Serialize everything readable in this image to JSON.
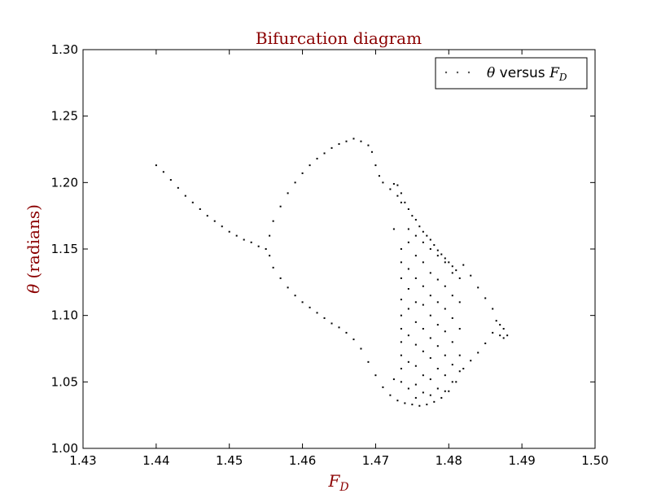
{
  "chart_data": {
    "type": "scatter",
    "title": "Bifurcation diagram",
    "xlabel": {
      "main": "F",
      "sub": "D"
    },
    "ylabel": {
      "symbol": "θ",
      "rest": " (radians)"
    },
    "xlim": [
      1.43,
      1.5
    ],
    "ylim": [
      1.0,
      1.3
    ],
    "xticks": [
      "1.43",
      "1.44",
      "1.45",
      "1.46",
      "1.47",
      "1.48",
      "1.49",
      "1.50"
    ],
    "yticks": [
      "1.00",
      "1.05",
      "1.10",
      "1.15",
      "1.20",
      "1.25",
      "1.30"
    ],
    "grid": false,
    "legend": {
      "position": "top-right",
      "symbol": "θ",
      "text": " versus ",
      "var": "F",
      "sub": "D"
    },
    "colors": {
      "title": "#8b0000",
      "marker": "#000000",
      "axes": "#000000"
    },
    "series": [
      {
        "points": [
          [
            1.44,
            1.213
          ],
          [
            1.441,
            1.208
          ],
          [
            1.442,
            1.202
          ],
          [
            1.443,
            1.196
          ],
          [
            1.444,
            1.19
          ],
          [
            1.445,
            1.185
          ],
          [
            1.446,
            1.18
          ],
          [
            1.447,
            1.175
          ],
          [
            1.448,
            1.171
          ],
          [
            1.449,
            1.167
          ],
          [
            1.45,
            1.163
          ],
          [
            1.451,
            1.16
          ],
          [
            1.452,
            1.157
          ],
          [
            1.453,
            1.155
          ],
          [
            1.454,
            1.152
          ],
          [
            1.455,
            1.15
          ],
          [
            1.4555,
            1.16
          ],
          [
            1.456,
            1.171
          ],
          [
            1.457,
            1.182
          ],
          [
            1.458,
            1.192
          ],
          [
            1.459,
            1.2
          ],
          [
            1.46,
            1.207
          ],
          [
            1.461,
            1.213
          ],
          [
            1.462,
            1.218
          ],
          [
            1.463,
            1.222
          ],
          [
            1.464,
            1.226
          ],
          [
            1.465,
            1.229
          ],
          [
            1.466,
            1.231
          ],
          [
            1.467,
            1.233
          ],
          [
            1.468,
            1.231
          ],
          [
            1.469,
            1.228
          ],
          [
            1.4695,
            1.223
          ],
          [
            1.47,
            1.213
          ],
          [
            1.4705,
            1.205
          ],
          [
            1.471,
            1.2
          ],
          [
            1.472,
            1.195
          ],
          [
            1.473,
            1.19
          ],
          [
            1.4735,
            1.185
          ],
          [
            1.4555,
            1.145
          ],
          [
            1.456,
            1.136
          ],
          [
            1.457,
            1.128
          ],
          [
            1.458,
            1.121
          ],
          [
            1.459,
            1.115
          ],
          [
            1.46,
            1.11
          ],
          [
            1.461,
            1.106
          ],
          [
            1.462,
            1.102
          ],
          [
            1.463,
            1.098
          ],
          [
            1.464,
            1.094
          ],
          [
            1.465,
            1.091
          ],
          [
            1.466,
            1.087
          ],
          [
            1.467,
            1.082
          ],
          [
            1.468,
            1.075
          ],
          [
            1.469,
            1.065
          ],
          [
            1.47,
            1.055
          ],
          [
            1.471,
            1.046
          ],
          [
            1.472,
            1.04
          ],
          [
            1.473,
            1.036
          ],
          [
            1.474,
            1.034
          ],
          [
            1.475,
            1.033
          ],
          [
            1.476,
            1.032
          ],
          [
            1.477,
            1.033
          ],
          [
            1.478,
            1.035
          ],
          [
            1.479,
            1.038
          ],
          [
            1.48,
            1.043
          ],
          [
            1.481,
            1.05
          ],
          [
            1.482,
            1.06
          ],
          [
            1.483,
            1.066
          ],
          [
            1.484,
            1.072
          ],
          [
            1.485,
            1.079
          ],
          [
            1.486,
            1.087
          ],
          [
            1.487,
            1.085
          ],
          [
            1.4875,
            1.083
          ],
          [
            1.482,
            1.138
          ],
          [
            1.483,
            1.13
          ],
          [
            1.484,
            1.121
          ],
          [
            1.485,
            1.113
          ],
          [
            1.486,
            1.105
          ],
          [
            1.4865,
            1.096
          ],
          [
            1.487,
            1.093
          ],
          [
            1.4875,
            1.09
          ],
          [
            1.488,
            1.085
          ],
          [
            1.4725,
            1.199
          ],
          [
            1.473,
            1.198
          ],
          [
            1.4735,
            1.192
          ],
          [
            1.474,
            1.185
          ],
          [
            1.4745,
            1.18
          ],
          [
            1.475,
            1.175
          ],
          [
            1.4755,
            1.172
          ],
          [
            1.476,
            1.167
          ],
          [
            1.4765,
            1.163
          ],
          [
            1.477,
            1.16
          ],
          [
            1.4775,
            1.157
          ],
          [
            1.478,
            1.153
          ],
          [
            1.4785,
            1.149
          ],
          [
            1.479,
            1.146
          ],
          [
            1.4795,
            1.143
          ],
          [
            1.48,
            1.14
          ],
          [
            1.4805,
            1.137
          ],
          [
            1.481,
            1.134
          ],
          [
            1.4735,
            1.15
          ],
          [
            1.4735,
            1.14
          ],
          [
            1.4735,
            1.128
          ],
          [
            1.4735,
            1.112
          ],
          [
            1.4735,
            1.1
          ],
          [
            1.4735,
            1.09
          ],
          [
            1.4735,
            1.08
          ],
          [
            1.4735,
            1.07
          ],
          [
            1.4735,
            1.06
          ],
          [
            1.4735,
            1.05
          ],
          [
            1.4745,
            1.165
          ],
          [
            1.4745,
            1.155
          ],
          [
            1.4745,
            1.135
          ],
          [
            1.4745,
            1.12
          ],
          [
            1.4745,
            1.105
          ],
          [
            1.4745,
            1.085
          ],
          [
            1.4745,
            1.065
          ],
          [
            1.4745,
            1.045
          ],
          [
            1.4755,
            1.16
          ],
          [
            1.4755,
            1.145
          ],
          [
            1.4755,
            1.128
          ],
          [
            1.4755,
            1.11
          ],
          [
            1.4755,
            1.095
          ],
          [
            1.4755,
            1.078
          ],
          [
            1.4755,
            1.062
          ],
          [
            1.4755,
            1.048
          ],
          [
            1.4755,
            1.038
          ],
          [
            1.4765,
            1.155
          ],
          [
            1.4765,
            1.14
          ],
          [
            1.4765,
            1.122
          ],
          [
            1.4765,
            1.108
          ],
          [
            1.4765,
            1.09
          ],
          [
            1.4765,
            1.073
          ],
          [
            1.4765,
            1.055
          ],
          [
            1.4765,
            1.042
          ],
          [
            1.4775,
            1.15
          ],
          [
            1.4775,
            1.132
          ],
          [
            1.4775,
            1.115
          ],
          [
            1.4775,
            1.1
          ],
          [
            1.4775,
            1.083
          ],
          [
            1.4775,
            1.068
          ],
          [
            1.4775,
            1.052
          ],
          [
            1.4775,
            1.04
          ],
          [
            1.4785,
            1.145
          ],
          [
            1.4785,
            1.127
          ],
          [
            1.4785,
            1.11
          ],
          [
            1.4785,
            1.093
          ],
          [
            1.4785,
            1.077
          ],
          [
            1.4785,
            1.06
          ],
          [
            1.4785,
            1.045
          ],
          [
            1.4795,
            1.14
          ],
          [
            1.4795,
            1.122
          ],
          [
            1.4795,
            1.105
          ],
          [
            1.4795,
            1.088
          ],
          [
            1.4795,
            1.07
          ],
          [
            1.4795,
            1.055
          ],
          [
            1.4795,
            1.043
          ],
          [
            1.4805,
            1.132
          ],
          [
            1.4805,
            1.115
          ],
          [
            1.4805,
            1.098
          ],
          [
            1.4805,
            1.08
          ],
          [
            1.4805,
            1.063
          ],
          [
            1.4805,
            1.05
          ],
          [
            1.4815,
            1.128
          ],
          [
            1.4815,
            1.11
          ],
          [
            1.4815,
            1.09
          ],
          [
            1.4815,
            1.07
          ],
          [
            1.4815,
            1.058
          ],
          [
            1.4725,
            1.165
          ],
          [
            1.4725,
            1.052
          ]
        ]
      }
    ]
  }
}
